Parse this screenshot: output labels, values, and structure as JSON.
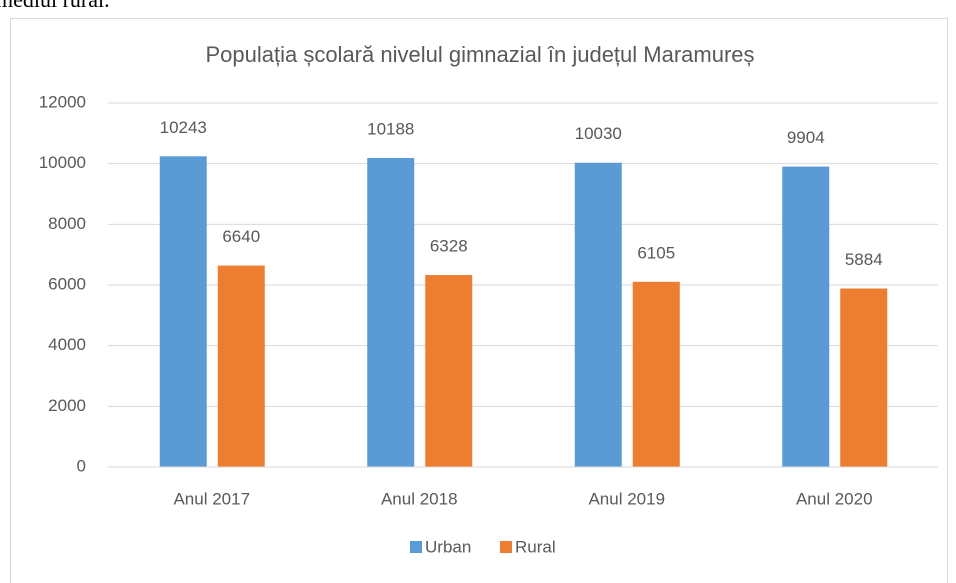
{
  "document": {
    "text": "mediul rural."
  },
  "chart_data": {
    "type": "bar",
    "title": "Populația școlară nivelul gimnazial în județul Maramureș",
    "categories": [
      "Anul 2017",
      "Anul 2018",
      "Anul 2019",
      "Anul 2020"
    ],
    "series": [
      {
        "name": "Urban",
        "color": "#5b9bd5",
        "values": [
          10243,
          10188,
          10030,
          9904
        ]
      },
      {
        "name": "Rural",
        "color": "#ed7d31",
        "values": [
          6640,
          6328,
          6105,
          5884
        ]
      }
    ],
    "ylim": [
      0,
      12000
    ],
    "yticks": [
      0,
      2000,
      4000,
      6000,
      8000,
      10000,
      12000
    ],
    "grid": true,
    "legend": "bottom"
  }
}
